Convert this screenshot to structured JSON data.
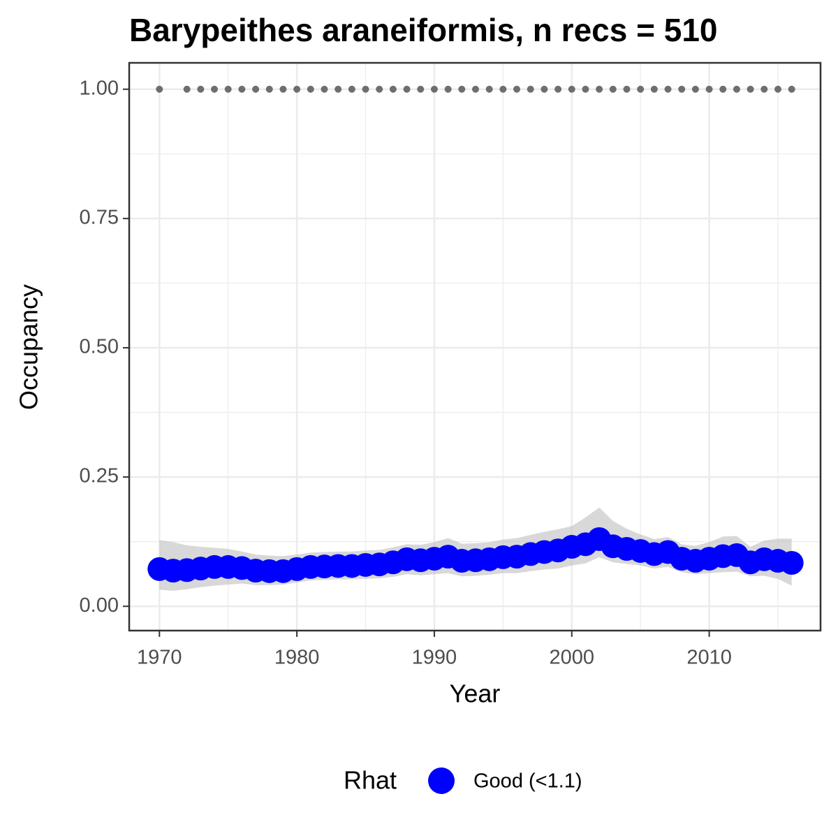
{
  "chart_data": {
    "type": "line",
    "title": "Barypeithes araneiformis, n recs = 510",
    "x_label": "Year",
    "y_label": "Occupancy",
    "legend_title": "Rhat",
    "legend_position": "bottom",
    "grid": true,
    "xlim": [
      1967.8,
      2018.1
    ],
    "ylim": [
      -0.047,
      1.051
    ],
    "xticks": [
      1970,
      1980,
      1990,
      2000,
      2010
    ],
    "x_minor_grid": [
      1975,
      1985,
      1995,
      2005,
      2015
    ],
    "yticks": [
      {
        "value": 0,
        "label": "0.00"
      },
      {
        "value": 0.25,
        "label": "0.25"
      },
      {
        "value": 0.5,
        "label": "0.50"
      },
      {
        "value": 0.75,
        "label": "0.75"
      },
      {
        "value": 1,
        "label": "1.00"
      }
    ],
    "y_minor_grid": [
      0.125,
      0.375,
      0.625,
      0.875
    ],
    "x": [
      1970,
      1971,
      1972,
      1973,
      1974,
      1975,
      1976,
      1977,
      1978,
      1979,
      1980,
      1981,
      1982,
      1983,
      1984,
      1985,
      1986,
      1987,
      1988,
      1989,
      1990,
      1991,
      1992,
      1993,
      1994,
      1995,
      1996,
      1997,
      1998,
      1999,
      2000,
      2001,
      2002,
      2003,
      2004,
      2005,
      2006,
      2007,
      2008,
      2009,
      2010,
      2011,
      2012,
      2013,
      2014,
      2015,
      2016
    ],
    "series": [
      {
        "name": "Good (<1.1)",
        "color": "#0000ff",
        "band_color": "#bebebe",
        "values": [
          0.072,
          0.069,
          0.07,
          0.073,
          0.076,
          0.076,
          0.074,
          0.069,
          0.068,
          0.068,
          0.072,
          0.076,
          0.077,
          0.078,
          0.078,
          0.08,
          0.081,
          0.085,
          0.091,
          0.089,
          0.092,
          0.096,
          0.088,
          0.089,
          0.091,
          0.095,
          0.096,
          0.101,
          0.105,
          0.108,
          0.115,
          0.12,
          0.13,
          0.116,
          0.111,
          0.107,
          0.101,
          0.105,
          0.092,
          0.088,
          0.092,
          0.097,
          0.099,
          0.085,
          0.091,
          0.088,
          0.084
        ],
        "lower": [
          0.032,
          0.03,
          0.033,
          0.037,
          0.04,
          0.042,
          0.044,
          0.041,
          0.041,
          0.042,
          0.046,
          0.05,
          0.051,
          0.052,
          0.052,
          0.053,
          0.054,
          0.057,
          0.062,
          0.06,
          0.062,
          0.064,
          0.058,
          0.059,
          0.061,
          0.064,
          0.064,
          0.068,
          0.071,
          0.073,
          0.079,
          0.083,
          0.095,
          0.085,
          0.082,
          0.079,
          0.073,
          0.076,
          0.066,
          0.062,
          0.064,
          0.066,
          0.067,
          0.058,
          0.059,
          0.053,
          0.04
        ],
        "upper": [
          0.128,
          0.124,
          0.118,
          0.115,
          0.113,
          0.111,
          0.106,
          0.1,
          0.098,
          0.097,
          0.1,
          0.104,
          0.105,
          0.106,
          0.106,
          0.108,
          0.109,
          0.114,
          0.12,
          0.119,
          0.124,
          0.132,
          0.121,
          0.122,
          0.124,
          0.129,
          0.132,
          0.138,
          0.144,
          0.149,
          0.155,
          0.172,
          0.191,
          0.165,
          0.15,
          0.139,
          0.13,
          0.134,
          0.12,
          0.117,
          0.124,
          0.135,
          0.136,
          0.115,
          0.127,
          0.131,
          0.131
        ]
      }
    ],
    "observed_color": "#6e6e6e",
    "observed_x": [
      1970,
      1972,
      1973,
      1974,
      1975,
      1976,
      1977,
      1978,
      1979,
      1980,
      1981,
      1982,
      1983,
      1984,
      1985,
      1986,
      1987,
      1988,
      1989,
      1990,
      1991,
      1992,
      1993,
      1994,
      1995,
      1996,
      1997,
      1998,
      1999,
      2000,
      2001,
      2002,
      2003,
      2004,
      2005,
      2006,
      2007,
      2008,
      2009,
      2010,
      2011,
      2012,
      2013,
      2014,
      2015,
      2016
    ],
    "observed_values": [
      1,
      1,
      1,
      1,
      1,
      1,
      1,
      1,
      1,
      1,
      1,
      1,
      1,
      1,
      1,
      1,
      1,
      1,
      1,
      1,
      1,
      1,
      1,
      1,
      1,
      1,
      1,
      1,
      1,
      1,
      1,
      1,
      1,
      1,
      1,
      1,
      1,
      1,
      1,
      1,
      1,
      1,
      1,
      1,
      1,
      1
    ]
  }
}
